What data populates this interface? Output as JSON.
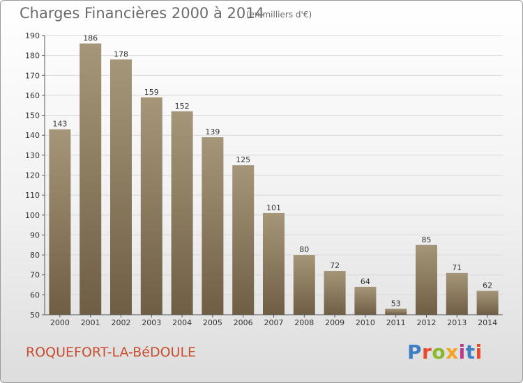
{
  "header": {
    "title": "Charges Financières 2000 à 2014",
    "subtitle": "(en milliers d'€)"
  },
  "footer": {
    "commune": "ROQUEFORT-LA-BéDOULE",
    "brand": "Proxiti",
    "brand_colors": [
      "#3d7ec5",
      "#e84a2a",
      "#8ab82d",
      "#f4a623",
      "#c13a8a",
      "#3d7ec5",
      "#e84a2a"
    ]
  },
  "colors": {
    "bar_top": "#a69679",
    "bar_bottom": "#6f5e44",
    "axis": "#555555",
    "grid": "#d9d9d9",
    "title": "#6a6a6a",
    "commune": "#c84d2e"
  },
  "chart_data": {
    "type": "bar",
    "title": "Charges Financières 2000 à 2014",
    "subtitle": "(en milliers d'€)",
    "categories": [
      "2000",
      "2001",
      "2002",
      "2003",
      "2004",
      "2005",
      "2006",
      "2007",
      "2008",
      "2009",
      "2010",
      "2011",
      "2012",
      "2013",
      "2014"
    ],
    "values": [
      143,
      186,
      178,
      159,
      152,
      139,
      125,
      101,
      80,
      72,
      64,
      53,
      85,
      71,
      62
    ],
    "ylim": [
      50,
      190
    ],
    "yticks": [
      50,
      60,
      70,
      80,
      90,
      100,
      110,
      120,
      130,
      140,
      150,
      160,
      170,
      180,
      190
    ],
    "grid": true,
    "legend": "none"
  }
}
